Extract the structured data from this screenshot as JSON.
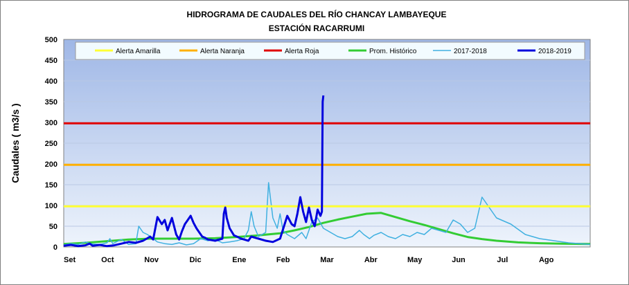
{
  "chart_data": {
    "type": "line",
    "title": "HIDROGRAMA DE CAUDALES DEL RÍO CHANCAY LAMBAYEQUE",
    "subtitle": "ESTACIÓN RACARRUMI",
    "ylabel": "Caudales ( m3/s )",
    "xlabel": "",
    "ylim": [
      0,
      500
    ],
    "yticks": [
      "0",
      "50",
      "100",
      "150",
      "200",
      "250",
      "300",
      "350",
      "400",
      "450",
      "500"
    ],
    "xticks": [
      "Set",
      "Oct",
      "Nov",
      "Dic",
      "Ene",
      "Feb",
      "Mar",
      "Abr",
      "May",
      "Jun",
      "Jul",
      "Ago"
    ],
    "x_range_days": [
      0,
      365
    ],
    "grid": "horizontal",
    "legend_position": "top",
    "series": [
      {
        "name": "Alerta Amarilla",
        "color": "#ffff33",
        "constant": 98
      },
      {
        "name": "Alerta Naranja",
        "color": "#ffb000",
        "constant": 198
      },
      {
        "name": "Alerta Roja",
        "color": "#e00000",
        "constant": 298
      },
      {
        "name": "Prom. Histórico",
        "color": "#33cc33",
        "x": [
          0,
          15,
          30,
          45,
          60,
          75,
          90,
          105,
          120,
          135,
          150,
          160,
          170,
          180,
          190,
          200,
          210,
          220,
          230,
          240,
          250,
          260,
          270,
          280,
          290,
          300,
          315,
          330,
          345,
          365
        ],
        "y": [
          7,
          10,
          14,
          18,
          20,
          20,
          20,
          21,
          24,
          28,
          33,
          40,
          48,
          58,
          66,
          73,
          80,
          82,
          72,
          62,
          53,
          43,
          33,
          24,
          19,
          15,
          11,
          9,
          8,
          7
        ]
      },
      {
        "name": "2017-2018",
        "color": "#3fb0e0",
        "x": [
          0,
          5,
          10,
          15,
          20,
          25,
          30,
          32,
          34,
          40,
          45,
          50,
          52,
          55,
          58,
          62,
          65,
          70,
          75,
          80,
          85,
          90,
          95,
          100,
          105,
          110,
          115,
          120,
          125,
          128,
          130,
          132,
          135,
          140,
          142,
          145,
          148,
          150,
          152,
          155,
          160,
          165,
          168,
          172,
          176,
          180,
          185,
          190,
          195,
          200,
          205,
          208,
          210,
          212,
          215,
          220,
          225,
          230,
          235,
          240,
          245,
          250,
          255,
          260,
          265,
          270,
          275,
          280,
          285,
          290,
          300,
          310,
          320,
          330,
          340,
          350,
          365
        ],
        "y": [
          5,
          8,
          6,
          12,
          7,
          6,
          10,
          20,
          8,
          18,
          6,
          8,
          50,
          35,
          30,
          20,
          12,
          8,
          6,
          10,
          5,
          8,
          20,
          15,
          18,
          10,
          12,
          15,
          20,
          40,
          85,
          50,
          25,
          35,
          155,
          70,
          45,
          80,
          40,
          30,
          20,
          35,
          20,
          60,
          70,
          45,
          35,
          25,
          20,
          25,
          40,
          30,
          25,
          20,
          28,
          35,
          25,
          20,
          30,
          25,
          35,
          30,
          45,
          40,
          35,
          65,
          55,
          35,
          45,
          120,
          70,
          55,
          30,
          20,
          15,
          10,
          6
        ]
      },
      {
        "name": "2018-2019",
        "color": "#0000dd",
        "x": [
          0,
          5,
          10,
          15,
          18,
          20,
          25,
          30,
          35,
          40,
          45,
          50,
          55,
          60,
          62,
          65,
          68,
          70,
          72,
          75,
          78,
          80,
          82,
          84,
          86,
          88,
          90,
          92,
          94,
          96,
          98,
          100,
          105,
          110,
          111,
          112,
          113,
          115,
          118,
          120,
          123,
          125,
          128,
          130,
          135,
          140,
          145,
          150,
          155,
          158,
          160,
          162,
          164,
          166,
          168,
          170,
          172,
          174,
          176,
          178,
          179,
          179.5,
          180
        ],
        "y": [
          3,
          5,
          2,
          4,
          8,
          3,
          5,
          2,
          4,
          8,
          12,
          10,
          15,
          25,
          18,
          72,
          55,
          65,
          40,
          70,
          30,
          18,
          38,
          55,
          65,
          75,
          58,
          45,
          35,
          25,
          22,
          18,
          15,
          20,
          80,
          95,
          70,
          45,
          28,
          25,
          20,
          18,
          15,
          25,
          20,
          15,
          12,
          20,
          75,
          55,
          50,
          80,
          120,
          85,
          60,
          95,
          65,
          50,
          90,
          75,
          85,
          350,
          365
        ]
      }
    ]
  },
  "legend": {
    "items": [
      "Alerta Amarilla",
      "Alerta Naranja",
      "Alerta Roja",
      "Prom. Histórico",
      "2017-2018",
      "2018-2019"
    ]
  }
}
